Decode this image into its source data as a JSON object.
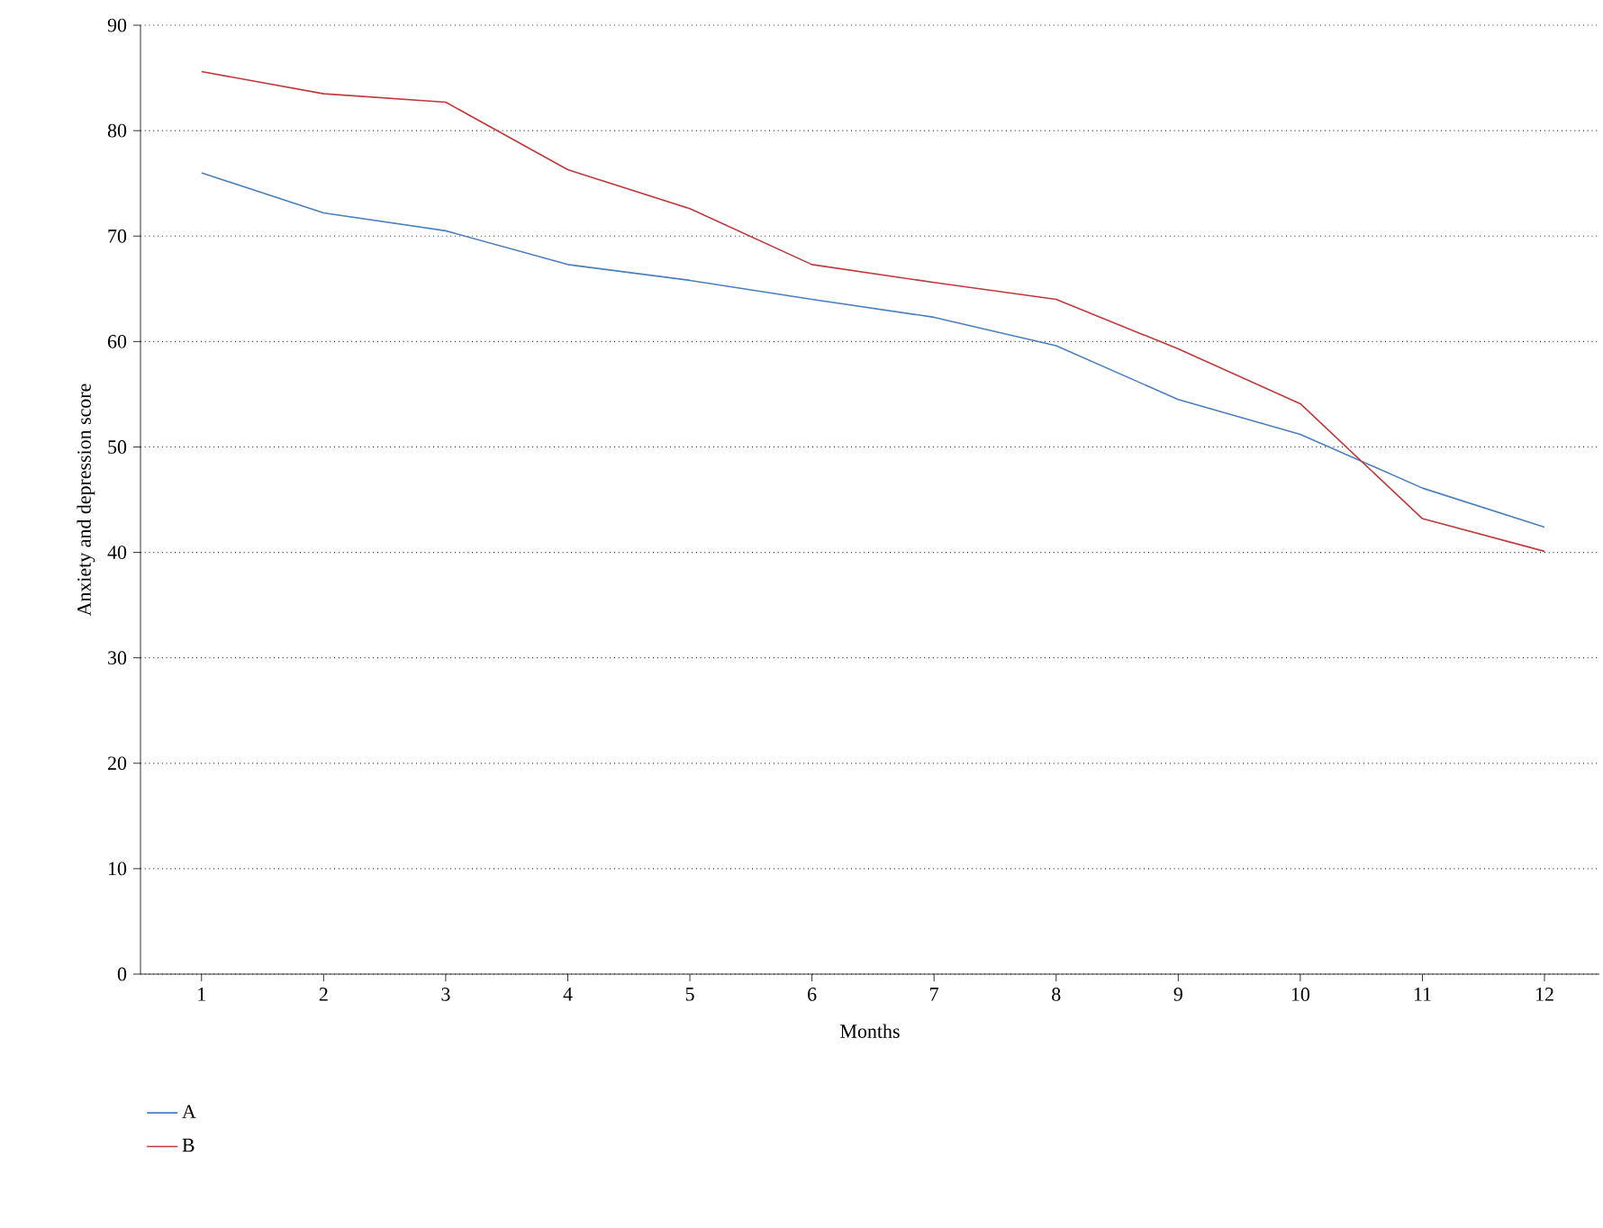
{
  "chart_data": {
    "type": "line",
    "xlabel": "Months",
    "ylabel": "Anxiety and depression score",
    "x": [
      1,
      2,
      3,
      4,
      5,
      6,
      7,
      8,
      9,
      10,
      11,
      12
    ],
    "series": [
      {
        "name": "A",
        "color": "#4a7fc1",
        "values": [
          76.0,
          72.2,
          70.5,
          67.3,
          65.8,
          64.0,
          62.3,
          59.6,
          54.5,
          51.2,
          46.1,
          42.4
        ]
      },
      {
        "name": "B",
        "color": "#c0393b",
        "values": [
          85.6,
          83.5,
          82.7,
          76.3,
          72.6,
          67.3,
          65.6,
          64.0,
          59.3,
          54.1,
          43.2,
          40.1
        ]
      }
    ],
    "xlim": [
      0.5,
      12.45
    ],
    "xticks": [
      1,
      2,
      3,
      4,
      5,
      6,
      7,
      8,
      9,
      10,
      11,
      12
    ],
    "ylim": [
      0,
      90
    ],
    "yticks": [
      0,
      10,
      20,
      30,
      40,
      50,
      60,
      70,
      80,
      90
    ],
    "grid": "y",
    "legend": "bottom left",
    "marker": "none",
    "line_style": "solid"
  }
}
